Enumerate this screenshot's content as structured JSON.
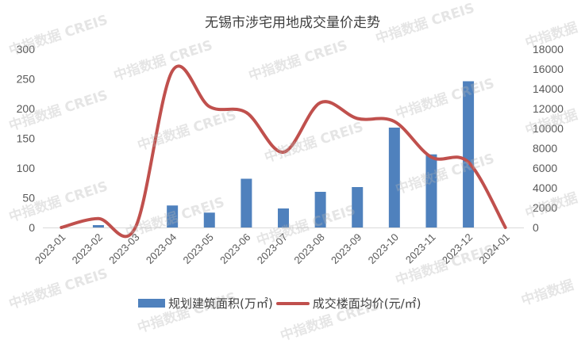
{
  "chart_data": {
    "type": "bar+line",
    "title": "无锡市涉宅用地成交量价走势",
    "categories": [
      "2023-01",
      "2023-02",
      "2023-03",
      "2023-04",
      "2023-05",
      "2023-06",
      "2023-07",
      "2023-08",
      "2023-09",
      "2023-10",
      "2023-11",
      "2023-12",
      "2024-01"
    ],
    "series": [
      {
        "name": "规划建筑面积(万㎡)",
        "type": "bar",
        "axis": "left",
        "color": "#4f81bd",
        "values": [
          0,
          4,
          0,
          37,
          25,
          82,
          32,
          60,
          68,
          168,
          123,
          246,
          0
        ]
      },
      {
        "name": "成交楼面均价(元/㎡)",
        "type": "line",
        "axis": "right",
        "color": "#c0504d",
        "values": [
          0,
          900,
          0,
          15800,
          12200,
          11600,
          7600,
          12600,
          11000,
          10700,
          7100,
          6600,
          0
        ]
      }
    ],
    "y_left": {
      "ticks": [
        "0",
        "50",
        "100",
        "150",
        "200",
        "250",
        "300"
      ],
      "ylim": [
        0,
        300
      ]
    },
    "y_right": {
      "ticks": [
        "0",
        "2000",
        "4000",
        "6000",
        "8000",
        "10000",
        "12000",
        "14000",
        "16000",
        "18000"
      ],
      "ylim": [
        0,
        18000
      ]
    },
    "xlabel": "",
    "ylabel": "",
    "grid": false,
    "legend_position": "bottom"
  },
  "watermarks": {
    "text_full": "中指数据 CREIS",
    "text_short": "中指数据"
  }
}
